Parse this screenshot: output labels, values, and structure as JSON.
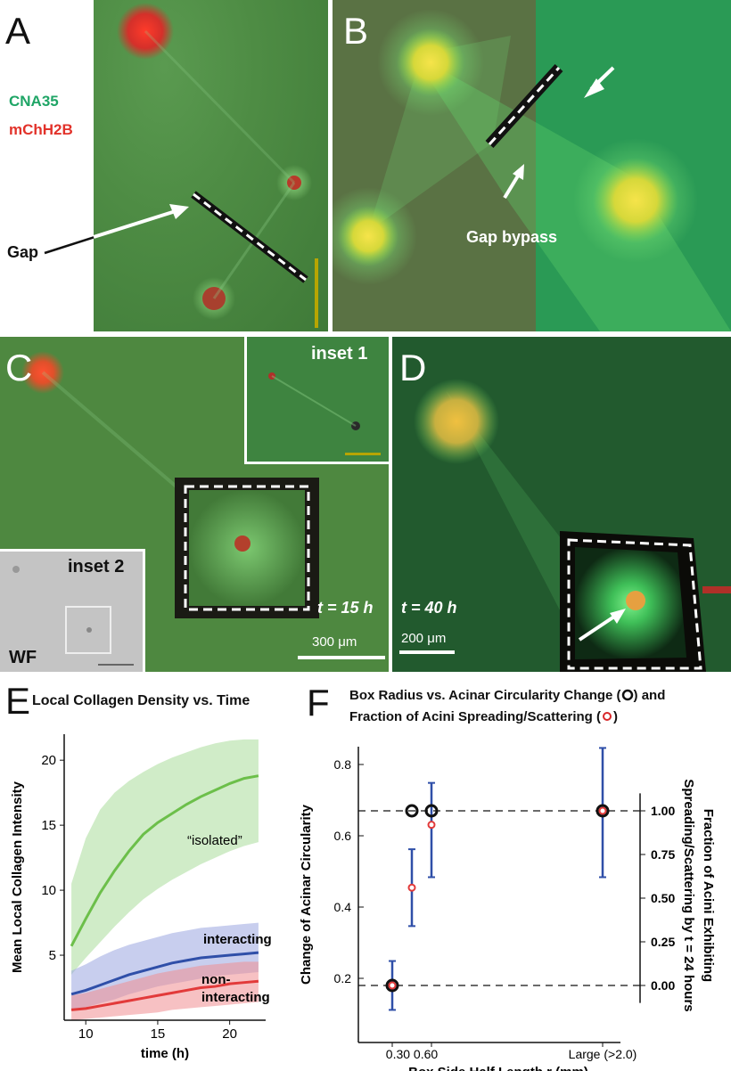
{
  "panels": {
    "A": {
      "label": "A",
      "legend_green": "CNA35",
      "legend_red": "mChH2B",
      "annotation": "Gap"
    },
    "B": {
      "label": "B",
      "annotation": "Gap bypass"
    },
    "C": {
      "label": "C",
      "inset1": "inset 1",
      "inset2": "inset 2",
      "wf": "WF",
      "time": "t = 15 h",
      "scale": "300 μm"
    },
    "D": {
      "label": "D",
      "time": "t = 40 h",
      "scale": "200 μm"
    },
    "E": {
      "label": "E",
      "title": "Local Collagen Density vs. Time"
    },
    "F": {
      "label": "F",
      "title_line1": "Box Radius vs. Acinar Circularity Change (",
      "title_line1_end": ") and",
      "title_line2": "Fraction of Acini Spreading/Scattering (",
      "title_line2_end": ")"
    }
  },
  "colors": {
    "green_cells": "#2bb35a",
    "red_nuclei": "#e0322a",
    "blue_series": "#2f4fa8",
    "red_series": "#e23a3a",
    "green_series": "#6cbf4a"
  },
  "chart_data": [
    {
      "type": "line",
      "title": "Local Collagen Density vs. Time",
      "xlabel": "time (h)",
      "ylabel": "Mean Local Collagen Intensity",
      "xlim": [
        8.5,
        22.5
      ],
      "ylim": [
        0,
        22
      ],
      "xticks": [
        10,
        15,
        20
      ],
      "yticks": [
        5,
        10,
        15,
        20
      ],
      "series": [
        {
          "name": "“isolated”",
          "x": [
            9,
            10,
            11,
            12,
            13,
            14,
            15,
            16,
            17,
            18,
            19,
            20,
            21,
            22
          ],
          "y": [
            5.7,
            7.8,
            9.8,
            11.5,
            13.0,
            14.3,
            15.2,
            15.9,
            16.6,
            17.2,
            17.7,
            18.2,
            18.6,
            18.8
          ],
          "lower": [
            3.5,
            4.8,
            6.0,
            7.2,
            8.3,
            9.3,
            10.1,
            10.8,
            11.4,
            12.0,
            12.5,
            13.0,
            13.4,
            13.7
          ],
          "upper": [
            10.5,
            14.0,
            16.2,
            17.5,
            18.4,
            19.1,
            19.7,
            20.2,
            20.6,
            21.0,
            21.3,
            21.5,
            21.6,
            21.6
          ]
        },
        {
          "name": "interacting",
          "x": [
            9,
            10,
            11,
            12,
            13,
            14,
            15,
            16,
            17,
            18,
            19,
            20,
            21,
            22
          ],
          "y": [
            2.0,
            2.3,
            2.7,
            3.1,
            3.5,
            3.8,
            4.1,
            4.4,
            4.6,
            4.8,
            4.9,
            5.0,
            5.1,
            5.2
          ],
          "lower": [
            0.8,
            1.0,
            1.3,
            1.6,
            2.0,
            2.3,
            2.6,
            2.8,
            3.0,
            3.2,
            3.4,
            3.5,
            3.6,
            3.7
          ],
          "upper": [
            3.8,
            4.3,
            4.9,
            5.4,
            5.8,
            6.1,
            6.4,
            6.7,
            6.9,
            7.1,
            7.2,
            7.3,
            7.4,
            7.5
          ]
        },
        {
          "name": "non-\ninteracting",
          "x": [
            9,
            10,
            11,
            12,
            13,
            14,
            15,
            16,
            17,
            18,
            19,
            20,
            21,
            22
          ],
          "y": [
            0.8,
            0.9,
            1.1,
            1.3,
            1.5,
            1.7,
            1.9,
            2.1,
            2.3,
            2.5,
            2.6,
            2.8,
            2.9,
            3.0
          ],
          "lower": [
            0.0,
            0.1,
            0.2,
            0.3,
            0.4,
            0.5,
            0.6,
            0.8,
            0.9,
            1.0,
            1.1,
            1.2,
            1.3,
            1.4
          ],
          "upper": [
            1.9,
            2.1,
            2.4,
            2.7,
            3.0,
            3.3,
            3.6,
            3.8,
            4.0,
            4.2,
            4.3,
            4.4,
            4.5,
            4.5
          ]
        }
      ],
      "legend": "inline labels"
    },
    {
      "type": "scatter",
      "xlabel": "Box Side Half Length r (mm)",
      "ylabel_left": "Change of Acinar Circularity",
      "ylabel_right": "Fraction of Acini Exhibiting Spreading/Scattering by t = 24 hours",
      "xticks": [
        "0.30",
        "0.60",
        "Large (>2.0)"
      ],
      "yticks_left": [
        0.2,
        0.4,
        0.6,
        0.8
      ],
      "yticks_right": [
        "0.00",
        "0.25",
        "0.50",
        "0.75",
        "1.00"
      ],
      "ylim_left": [
        0.02,
        0.85
      ],
      "circularity_change": [
        {
          "x": 0.3,
          "y": 0.18
        },
        {
          "x": 0.45,
          "y": 0.67
        },
        {
          "x": 0.6,
          "y": 0.67
        },
        {
          "x": "Large (>2.0)",
          "y": 0.67
        }
      ],
      "fraction_spreading": [
        {
          "x": 0.3,
          "y": 0.0,
          "err_low": -0.14,
          "err_high": 0.14
        },
        {
          "x": 0.45,
          "y": 0.56,
          "err_low": 0.34,
          "err_high": 0.78
        },
        {
          "x": 0.6,
          "y": 0.92,
          "err_low": 0.62,
          "err_high": 1.16
        },
        {
          "x": "Large (>2.0)",
          "y": 1.0,
          "err_low": 0.62,
          "err_high": 1.36
        }
      ],
      "reference_lines_left": [
        0.18,
        0.67
      ]
    }
  ]
}
